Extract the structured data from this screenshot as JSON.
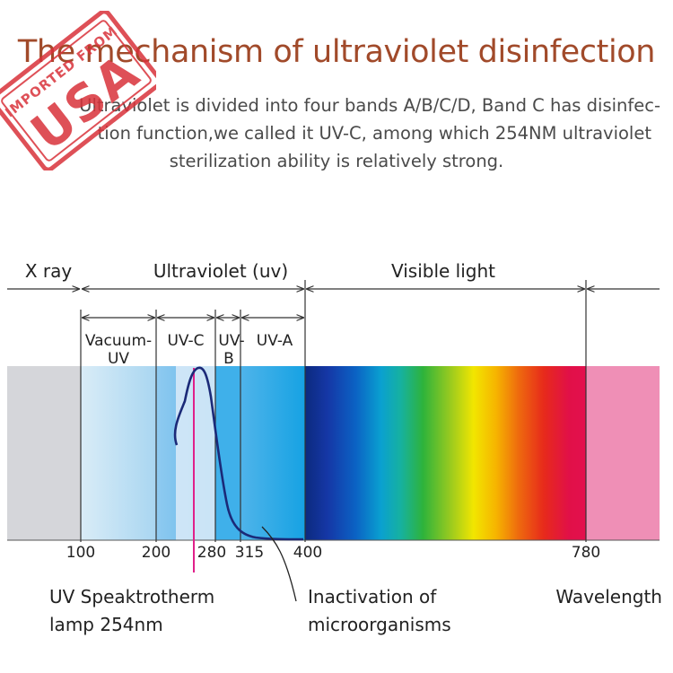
{
  "title": "The mechanism of ultraviolet disinfection",
  "description": {
    "line1": "Ultraviolet is divided into four bands A/B/C/D, Band C has disinfec-",
    "line2": "tion function,we called it UV-C, among which  254NM ultraviolet",
    "line3": "sterilization ability is relatively strong."
  },
  "stamp": {
    "top": "IMPORTED FROM",
    "main": "USA",
    "color": "#d9323a"
  },
  "diagram": {
    "regions": {
      "xray": "X ray",
      "ultraviolet": "Ultraviolet (uv)",
      "visible": "Visible light"
    },
    "bands": {
      "vacuum_line1": "Vacuum-",
      "vacuum_line2": "UV",
      "uvc": "UV-C",
      "uvb_line1": "UV-",
      "uvb_line2": "B",
      "uva": "UV-A"
    },
    "ticks": [
      "100",
      "200",
      "280",
      "315",
      "400",
      "780"
    ],
    "labels": {
      "lamp_line1": "UV Speaktrotherm",
      "lamp_line2": "lamp 254nm",
      "inact_line1": "Inactivation of",
      "inact_line2": "microorganisms",
      "wavelength": "Wavelength"
    },
    "colors": {
      "xray": "#d5d6da",
      "infrared": "#ef8fb6",
      "curve": "#1b2a78",
      "lamp_line": "#e0208a"
    }
  }
}
